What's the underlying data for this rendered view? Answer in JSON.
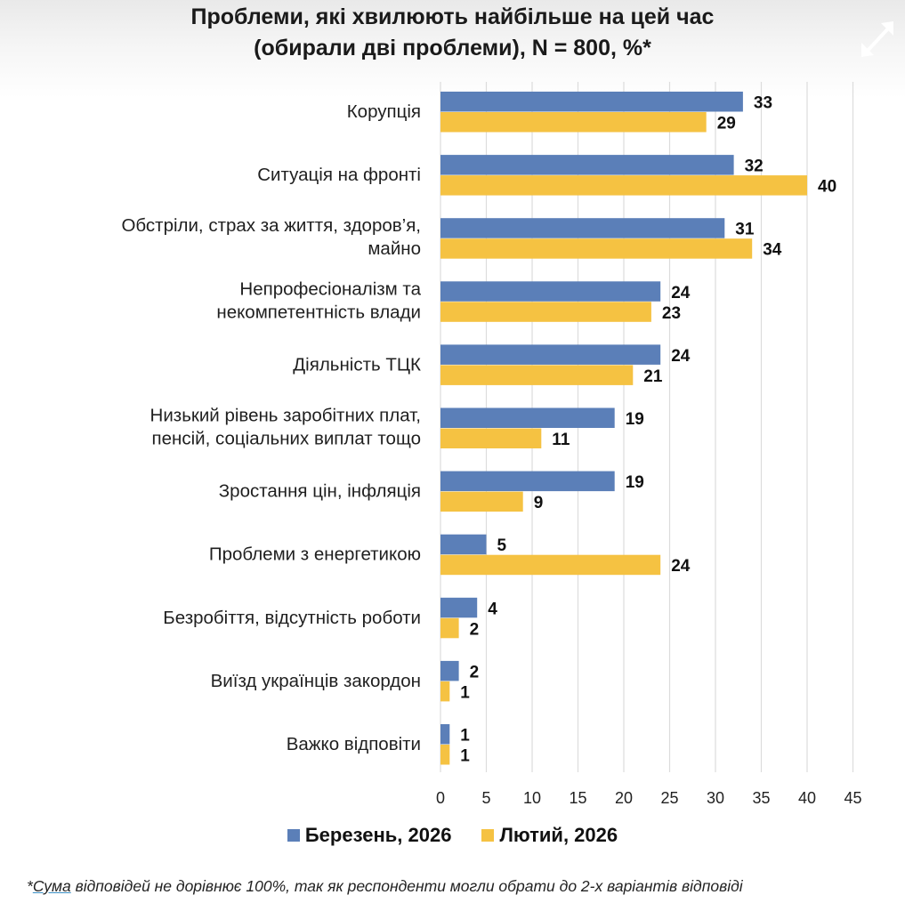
{
  "title_lines": [
    "Проблеми, які хвилюють найбільше на цей час",
    "(обирали дві проблеми), N = 800, %*"
  ],
  "expand_icon": "expand-arrows-icon",
  "legend": [
    {
      "label": "Березень, 2026",
      "color": "#5b7fb8"
    },
    {
      "label": "Лютий, 2026",
      "color": "#f5c242"
    }
  ],
  "footnote": {
    "prefix": "*",
    "underlined": "Сума",
    "rest": " відповідей не дорівнює 100%, так як респонденти могли обрати до 2-х варіантів відповіді"
  },
  "chart_data": {
    "type": "bar",
    "orientation": "horizontal",
    "title": "Проблеми, які хвилюють найбільше на цей час (обирали дві проблеми), N = 800, %*",
    "xlabel": "",
    "ylabel": "",
    "xlim": [
      0,
      45
    ],
    "ticks": [
      0,
      5,
      10,
      15,
      20,
      25,
      30,
      35,
      40,
      45
    ],
    "grid": true,
    "legend_position": "bottom",
    "categories": [
      [
        "Корупція"
      ],
      [
        "Ситуація на фронті"
      ],
      [
        "Обстріли, страх за життя, здоров’я,",
        "майно"
      ],
      [
        "Непрофесіоналізм та",
        "некомпетентність влади"
      ],
      [
        "Діяльність ТЦК"
      ],
      [
        "Низький рівень заробітних плат,",
        "пенсій, соціальних виплат тощо"
      ],
      [
        "Зростання цін, інфляція"
      ],
      [
        "Проблеми з енергетикою"
      ],
      [
        "Безробіття, відсутність роботи"
      ],
      [
        "Виїзд українців закордон"
      ],
      [
        "Важко відповіти"
      ]
    ],
    "series": [
      {
        "name": "Березень, 2026",
        "color": "#5b7fb8",
        "values": [
          33,
          32,
          31,
          24,
          24,
          19,
          19,
          5,
          4,
          2,
          1
        ]
      },
      {
        "name": "Лютий, 2026",
        "color": "#f5c242",
        "values": [
          29,
          40,
          34,
          23,
          21,
          11,
          9,
          24,
          2,
          1,
          1
        ]
      }
    ]
  }
}
